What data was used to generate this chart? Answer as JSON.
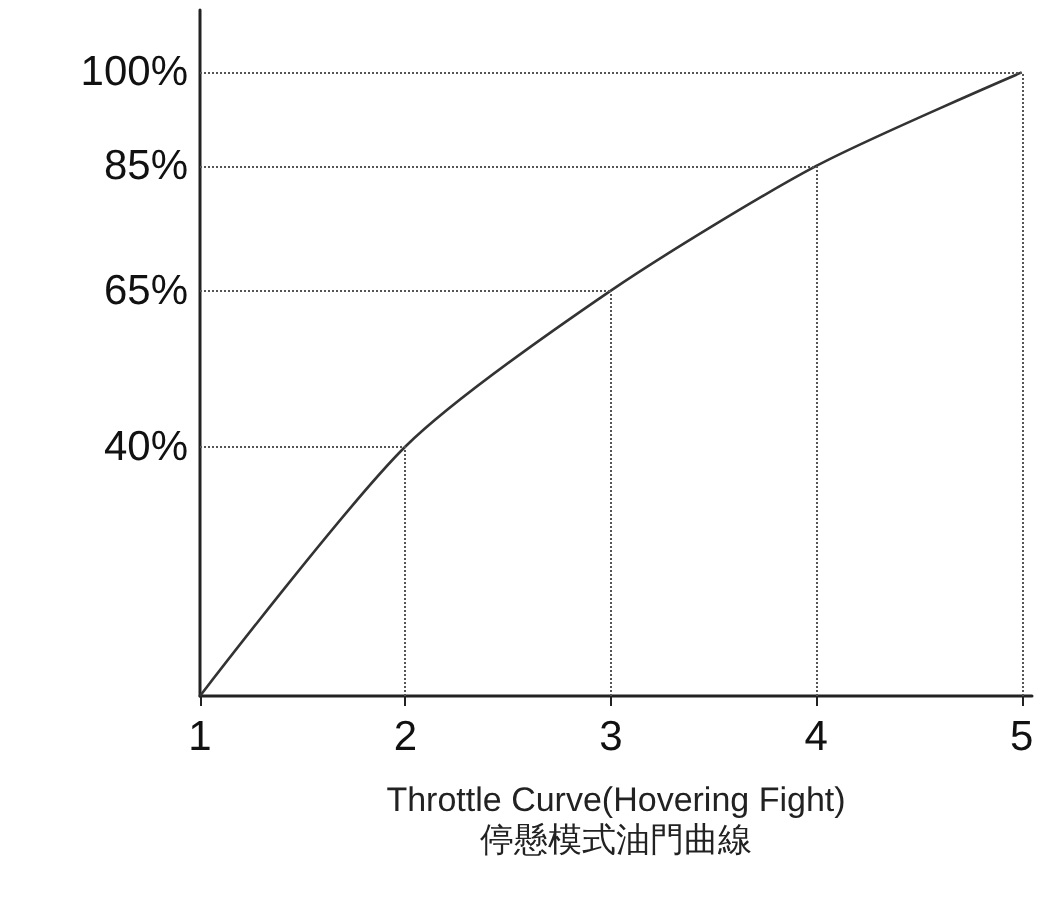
{
  "chart_data": {
    "type": "line",
    "xlabel": "Throttle Curve(Hovering Fight)\n停懸模式油門曲線",
    "x": [
      1,
      2,
      3,
      4,
      5
    ],
    "series": [
      {
        "color": "#333333",
        "values": [
          0,
          40,
          65,
          85,
          100
        ]
      }
    ],
    "xlim": [
      1,
      5.05
    ],
    "xticks": [
      1,
      2,
      3,
      4,
      5
    ],
    "ylim": [
      0,
      110
    ],
    "yticks": [
      {
        "value": 40,
        "label": "40%"
      },
      {
        "value": 65,
        "label": "65%"
      },
      {
        "value": 85,
        "label": "85%"
      },
      {
        "value": 100,
        "label": "100%"
      }
    ],
    "ref_lines": [
      {
        "axis": "y",
        "value": 40,
        "line_style": "dotted"
      },
      {
        "axis": "y",
        "value": 65,
        "line_style": "dotted"
      },
      {
        "axis": "y",
        "value": 85,
        "line_style": "dotted"
      },
      {
        "axis": "y",
        "value": 100,
        "line_style": "dotted"
      },
      {
        "axis": "x",
        "value": 2,
        "line_style": "dotted"
      },
      {
        "axis": "x",
        "value": 3,
        "line_style": "dotted"
      },
      {
        "axis": "x",
        "value": 4,
        "line_style": "dotted"
      },
      {
        "axis": "x",
        "value": 5,
        "line_style": "dotted"
      }
    ],
    "grid": false,
    "marker": "none"
  }
}
